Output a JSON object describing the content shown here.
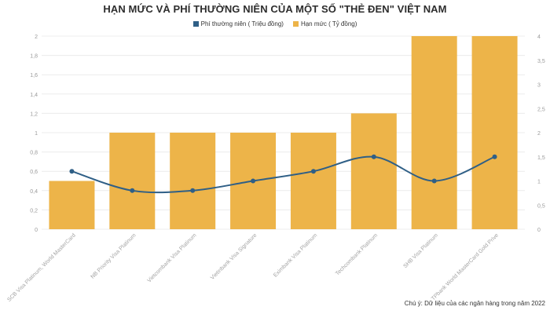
{
  "chart_data": {
    "type": "bar",
    "title": "HẠN MỨC VÀ PHÍ THƯỜNG NIÊN CỦA MỘT SỐ \"THẺ ĐEN\" VIỆT NAM",
    "categories": [
      "SCB Visa Platinum, World MasterCard",
      "NB Priority Visa Platinum",
      "Vietcombank Visa Platinum",
      "Vietinbank Visa Signature",
      "Eximbank Visa Platinum",
      "Techcombank Platinum",
      "SHB Visa Platinum",
      "TPbank World MasterCard Gold Prive"
    ],
    "series": [
      {
        "name": "Phí thường niên ( Triệu đồng)",
        "type": "line",
        "axis": "left",
        "values": [
          0.6,
          0.4,
          0.4,
          0.5,
          0.6,
          0.75,
          0.5,
          0.75
        ]
      },
      {
        "name": "Hạn mức ( Tỷ đồng)",
        "type": "bar",
        "axis": "right",
        "values": [
          1,
          2,
          2,
          2,
          2,
          2.4,
          4,
          4
        ]
      }
    ],
    "left_axis": {
      "min": 0,
      "max": 2,
      "ticks": [
        "0",
        "0,2",
        "0,4",
        "0,6",
        "0,8",
        "1",
        "1,2",
        "1,4",
        "1,6",
        "1,8",
        "2"
      ]
    },
    "right_axis": {
      "min": 0,
      "max": 4,
      "ticks": [
        "0",
        "0,5",
        "1",
        "1,5",
        "2",
        "2,5",
        "3",
        "3,5",
        "4"
      ]
    },
    "grid": true,
    "legend_position": "top-center",
    "colors": {
      "bar": "#EDB449",
      "line": "#2F5F86",
      "grid": "#ECECEC",
      "axis_text": "#9A9A9A"
    }
  },
  "footnote": "Chú ý: Dữ liệu của các ngân hàng trong năm 2022"
}
